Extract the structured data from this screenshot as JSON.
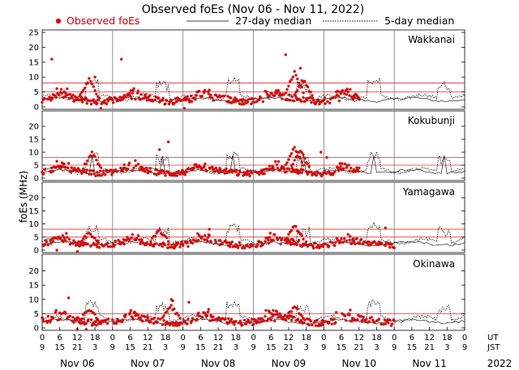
{
  "chart_data": {
    "type": "scatter",
    "title": "Observed foEs (Nov 06 - Nov 11, 2022)",
    "legend": {
      "observed": "Observed foEs",
      "median27": "27-day median",
      "median5": "5-day median"
    },
    "ylabel": "foEs (MHz)",
    "ylim": [
      0,
      25
    ],
    "yticks": [
      "25",
      "20",
      "15",
      "10",
      "5",
      "0"
    ],
    "yticks_lower": [
      "20",
      "15",
      "10",
      "5",
      "0"
    ],
    "x_hours_ut": [
      "0",
      "6",
      "12",
      "18",
      "0",
      "6",
      "12",
      "18",
      "0",
      "6",
      "12",
      "18",
      "0",
      "6",
      "12",
      "18",
      "0",
      "6",
      "12",
      "18",
      "0",
      "6",
      "12",
      "18",
      "0"
    ],
    "x_hours_jst": [
      "9",
      "15",
      "21",
      "3",
      "9",
      "15",
      "21",
      "3",
      "9",
      "15",
      "21",
      "3",
      "9",
      "15",
      "21",
      "3",
      "9",
      "15",
      "21",
      "3",
      "9",
      "15",
      "21",
      "3",
      "9"
    ],
    "ut_label": "UT",
    "jst_label": "JST",
    "days": [
      "Nov 06",
      "Nov 07",
      "Nov 08",
      "Nov 09",
      "Nov 10",
      "Nov 11"
    ],
    "year": "2022",
    "colors": {
      "observed": "#d01010",
      "threshold": "#e03030",
      "line": "#000000"
    },
    "panels": [
      {
        "station": "Wakkanai",
        "thresholds": [
          5,
          8
        ],
        "median27_level": 2.5,
        "median5_level": 3.2,
        "obs_end_hours": 108,
        "outliers": [
          [
            3.3,
            16
          ],
          [
            27,
            16
          ],
          [
            83,
            17.5
          ],
          [
            88,
            13
          ],
          [
            18,
            10
          ],
          [
            20,
            -0.5
          ],
          [
            48.5,
            -0.5
          ]
        ],
        "bursts": [
          [
            16,
            8.5
          ],
          [
            86,
            11
          ],
          [
            89,
            8.5
          ]
        ]
      },
      {
        "station": "Kokubunji",
        "thresholds": [
          5,
          8
        ],
        "median27_level": 2.5,
        "median5_level": 3.0,
        "obs_end_hours": 108,
        "outliers": [
          [
            43,
            14
          ],
          [
            40,
            11
          ],
          [
            95,
            10
          ],
          [
            97,
            8
          ]
        ],
        "bursts": [
          [
            17,
            9
          ],
          [
            86,
            11
          ],
          [
            88,
            10
          ]
        ]
      },
      {
        "station": "Yamagawa",
        "thresholds": [
          5,
          8
        ],
        "median27_level": 2.5,
        "median5_level": 3.4,
        "obs_end_hours": 120,
        "outliers": [
          [
            117,
            8.5
          ],
          [
            57,
            8
          ],
          [
            5,
            0
          ],
          [
            12,
            -0.5
          ]
        ],
        "bursts": [
          [
            16,
            6
          ],
          [
            40,
            7
          ],
          [
            86,
            9
          ]
        ]
      },
      {
        "station": "Okinawa",
        "thresholds": [
          5
        ],
        "median27_level": 2.3,
        "median5_level": 3.2,
        "obs_end_hours": 120,
        "outliers": [
          [
            9,
            10.5
          ],
          [
            44,
            10
          ],
          [
            50,
            9
          ],
          [
            44.5,
            9.5
          ],
          [
            12,
            -0.5
          ],
          [
            15,
            -0.5
          ]
        ],
        "bursts": [
          [
            16,
            6
          ],
          [
            44,
            7
          ],
          [
            86,
            7
          ]
        ]
      }
    ]
  }
}
